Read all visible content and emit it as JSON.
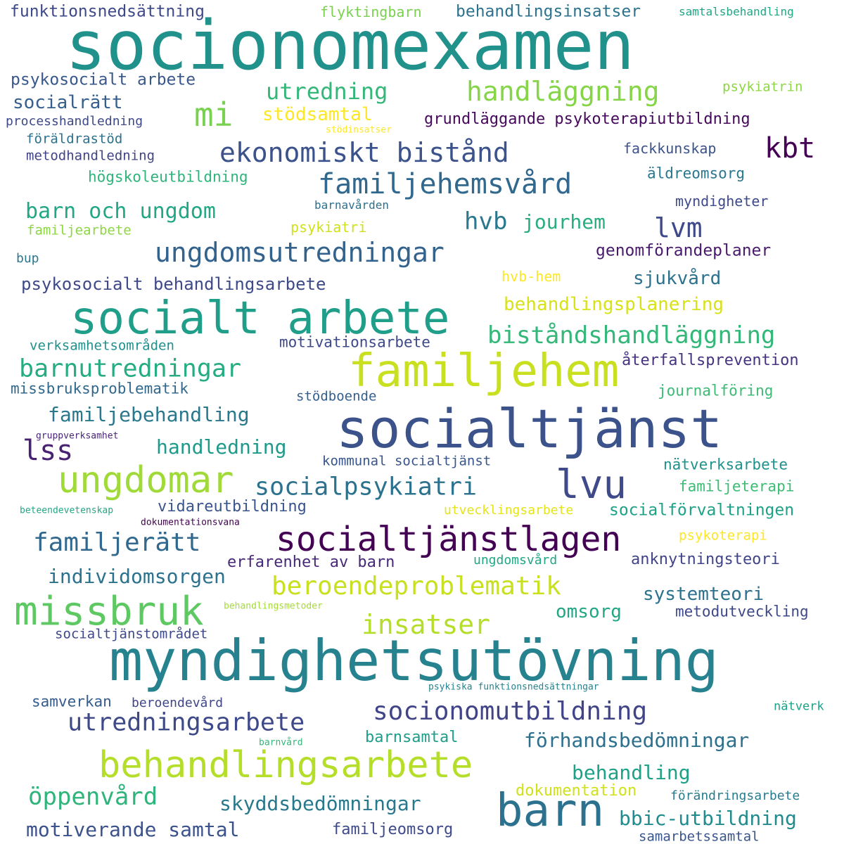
{
  "words": [
    {
      "text": "socionomexamen",
      "color": "#21918c"
    },
    {
      "text": "myndighetsutövning",
      "color": "#26828e"
    },
    {
      "text": "socialtjänst",
      "color": "#3b528b"
    },
    {
      "text": "socialt arbete",
      "color": "#1f9e89"
    },
    {
      "text": "familjehem",
      "color": "#c8e020"
    },
    {
      "text": "barn",
      "color": "#2c728e"
    },
    {
      "text": "behandlingsarbete",
      "color": "#b5de2b"
    },
    {
      "text": "missbruk",
      "color": "#5ec962"
    },
    {
      "text": "ungdomar",
      "color": "#a0da39"
    },
    {
      "text": "socialtjänstlagen",
      "color": "#440154"
    },
    {
      "text": "lvu",
      "color": "#3e4a89"
    },
    {
      "text": "ekonomiskt bistånd",
      "color": "#3b528b"
    },
    {
      "text": "mi",
      "color": "#7ad151"
    },
    {
      "text": "handläggning",
      "color": "#86d549"
    },
    {
      "text": "familjehemsvård",
      "color": "#31688e"
    },
    {
      "text": "ungdomsutredningar",
      "color": "#33638d"
    },
    {
      "text": "insatser",
      "color": "#b5de2b"
    },
    {
      "text": "beroendeproblematik",
      "color": "#c8e020"
    },
    {
      "text": "socionomutbildning",
      "color": "#414487"
    },
    {
      "text": "utredningsarbete",
      "color": "#3e4989"
    },
    {
      "text": "socialpsykiatri",
      "color": "#2c728e"
    },
    {
      "text": "biståndshandläggning",
      "color": "#35b779"
    },
    {
      "text": "barnutredningar",
      "color": "#25ac82"
    },
    {
      "text": "familjerätt",
      "color": "#31688e"
    },
    {
      "text": "lss",
      "color": "#482173"
    },
    {
      "text": "lvm",
      "color": "#3e4a89"
    },
    {
      "text": "kbt",
      "color": "#440154"
    },
    {
      "text": "hvb",
      "color": "#2a788e"
    },
    {
      "text": "utredning",
      "color": "#35b779"
    },
    {
      "text": "öppenvård",
      "color": "#2fb47c"
    },
    {
      "text": "förhandsbedömningar",
      "color": "#2d708e"
    },
    {
      "text": "barn och ungdom",
      "color": "#22a785"
    },
    {
      "text": "familjebehandling",
      "color": "#2a788e"
    },
    {
      "text": "individomsorgen",
      "color": "#2c728e"
    },
    {
      "text": "motiverande samtal",
      "color": "#3b528b"
    },
    {
      "text": "behandling",
      "color": "#1fa187"
    },
    {
      "text": "skyddsbedömningar",
      "color": "#29798e"
    },
    {
      "text": "bbic-utbildning",
      "color": "#228b8d"
    },
    {
      "text": "handledning",
      "color": "#1f9a8a"
    },
    {
      "text": "jourhem",
      "color": "#27ad81"
    },
    {
      "text": "systemteori",
      "color": "#2c728e"
    },
    {
      "text": "sjukvård",
      "color": "#2c728e"
    },
    {
      "text": "stödsamtal",
      "color": "#fde725"
    },
    {
      "text": "behandlingsplanering",
      "color": "#d8e219"
    },
    {
      "text": "omsorg",
      "color": "#22a785"
    },
    {
      "text": "genomförandeplaner",
      "color": "#481a6c"
    },
    {
      "text": "grundläggande psykoterapiutbildning",
      "color": "#46085c"
    },
    {
      "text": "psykosocialt behandlingsarbete",
      "color": "#3e4989"
    },
    {
      "text": "socialrätt",
      "color": "#355f8d"
    },
    {
      "text": "psykosocialt arbete",
      "color": "#38588c"
    },
    {
      "text": "barnsamtal",
      "color": "#1f9e89"
    },
    {
      "text": "samverkan",
      "color": "#365c8d"
    },
    {
      "text": "erfarenhet av barn",
      "color": "#482878"
    },
    {
      "text": "vidareutbildning",
      "color": "#39558c"
    },
    {
      "text": "anknytningsteori",
      "color": "#414487"
    },
    {
      "text": "dokumentation",
      "color": "#d0e11c"
    },
    {
      "text": "familjeomsorg",
      "color": "#3e4a89"
    },
    {
      "text": "återfallsprevention",
      "color": "#46337f"
    },
    {
      "text": "motivationsarbete",
      "color": "#3e4989"
    },
    {
      "text": "metodutveckling",
      "color": "#3e4989"
    },
    {
      "text": "funktionsnedsättning",
      "color": "#3e4989"
    },
    {
      "text": "behandlingsinsatser",
      "color": "#2c728e"
    },
    {
      "text": "fackkunskap",
      "color": "#3b528b"
    },
    {
      "text": "högskoleutbildning",
      "color": "#2fb47c"
    },
    {
      "text": "journalföring",
      "color": "#3bbb75"
    },
    {
      "text": "missbruksproblematik",
      "color": "#31688e"
    },
    {
      "text": "verksamhetsområden",
      "color": "#21908d"
    },
    {
      "text": "socialförvaltningen",
      "color": "#1fa187"
    },
    {
      "text": "nätverksarbete",
      "color": "#21918c"
    },
    {
      "text": "familjeterapi",
      "color": "#3dbc74"
    },
    {
      "text": "familjearbete",
      "color": "#8ed645"
    },
    {
      "text": "förändringsarbete",
      "color": "#297b8e"
    },
    {
      "text": "äldreomsorg",
      "color": "#2a778e"
    },
    {
      "text": "myndigheter",
      "color": "#3e4a89"
    },
    {
      "text": "psykiatri",
      "color": "#d0e11c"
    },
    {
      "text": "hvb-hem",
      "color": "#fde725"
    },
    {
      "text": "flyktingbarn",
      "color": "#7ad151"
    },
    {
      "text": "psykiatrin",
      "color": "#8ed645"
    },
    {
      "text": "föräldrastöd",
      "color": "#2c728e"
    },
    {
      "text": "metodhandledning",
      "color": "#414487"
    },
    {
      "text": "ungdomsvård",
      "color": "#22a785"
    },
    {
      "text": "socialtjänstområdet",
      "color": "#3e4989"
    },
    {
      "text": "kommunal socialtjänst",
      "color": "#39568c"
    },
    {
      "text": "psykoterapi",
      "color": "#fde725"
    },
    {
      "text": "utvecklingsarbete",
      "color": "#e5e419"
    },
    {
      "text": "stödboende",
      "color": "#355f8d"
    },
    {
      "text": "samarbetssamtal",
      "color": "#39568c"
    },
    {
      "text": "samtalsbehandling",
      "color": "#21a685"
    },
    {
      "text": "processhandledning",
      "color": "#3e4989"
    },
    {
      "text": "beroendevård",
      "color": "#404688"
    },
    {
      "text": "nätverk",
      "color": "#1fa188"
    },
    {
      "text": "barnavården",
      "color": "#2d708e"
    },
    {
      "text": "bup",
      "color": "#2a788e"
    },
    {
      "text": "stödinsatser",
      "color": "#fde725"
    },
    {
      "text": "beteendevetenskap",
      "color": "#22a785"
    },
    {
      "text": "dokumentationsvana",
      "color": "#440154"
    },
    {
      "text": "gruppverksamhet",
      "color": "#482677"
    },
    {
      "text": "behandlingsmetoder",
      "color": "#a5db36"
    },
    {
      "text": "psykiska funktionsnedsättningar",
      "color": "#26828e"
    },
    {
      "text": "barnvård",
      "color": "#35b779"
    }
  ]
}
